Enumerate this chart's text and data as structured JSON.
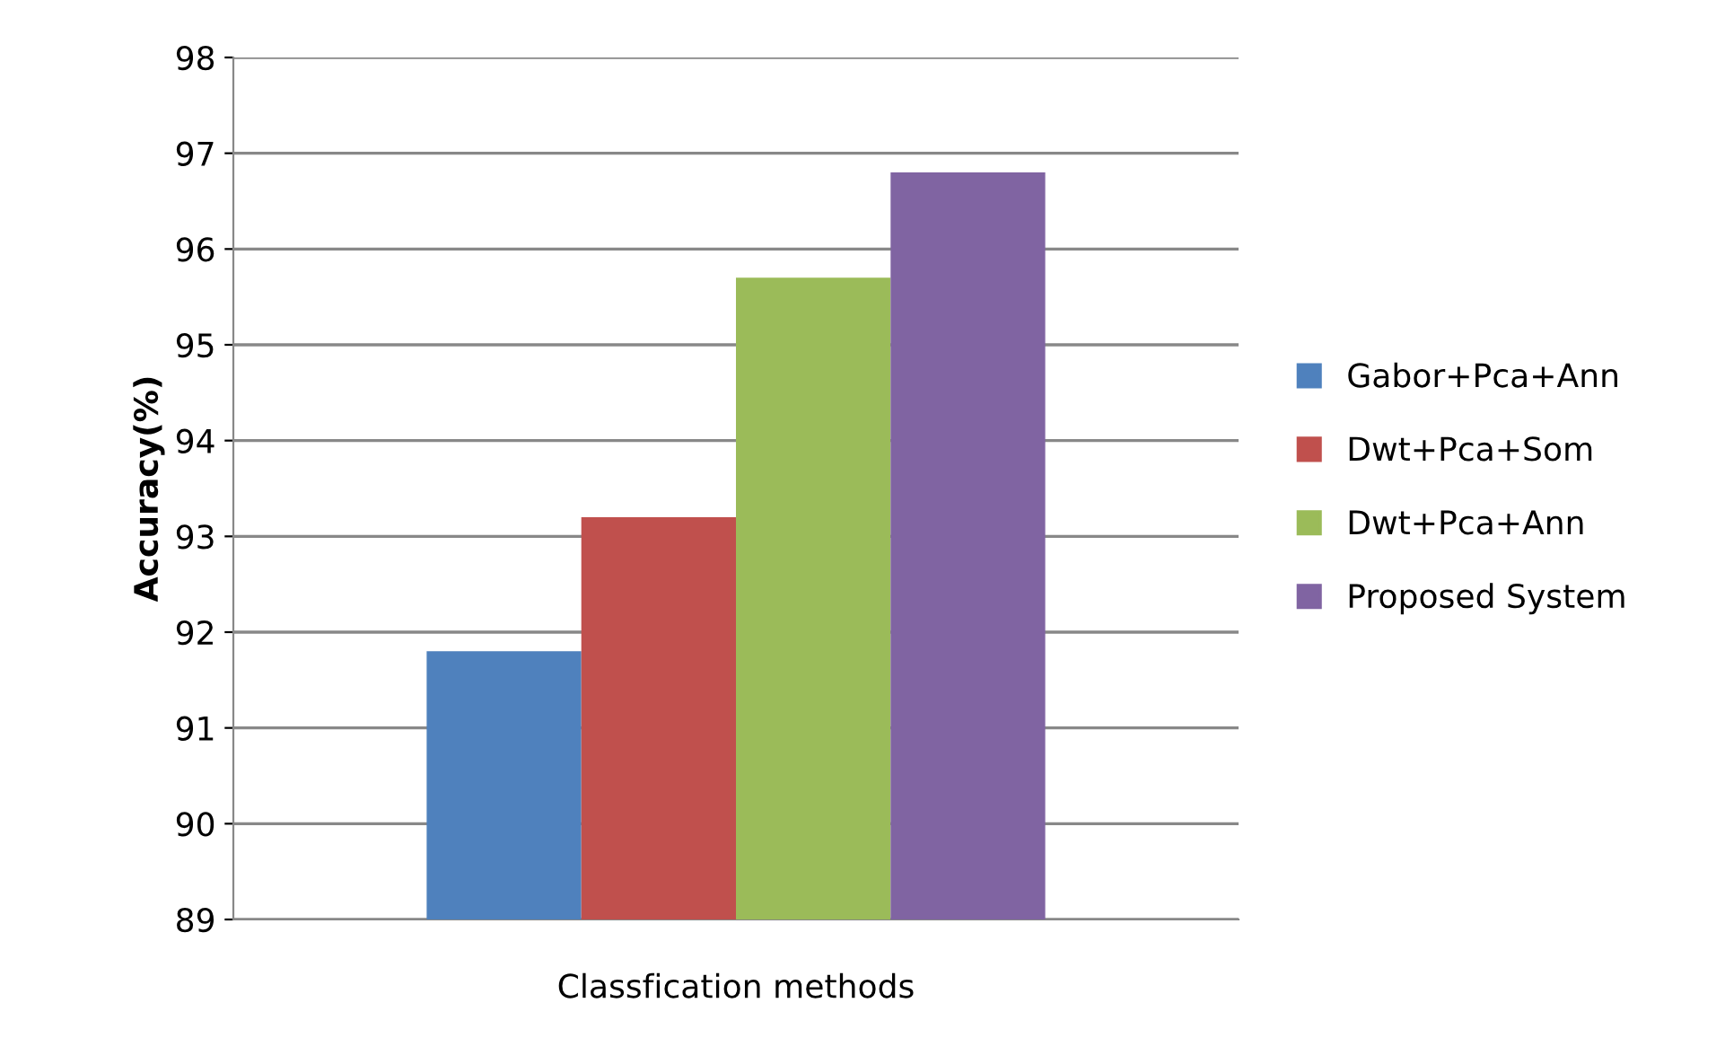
{
  "chart_data": {
    "type": "bar",
    "xlabel": "Classfication methods",
    "ylabel": "Accuracy(%)",
    "categories": [
      null
    ],
    "series": [
      {
        "name": "Gabor+Pca+Ann",
        "color": "#4f81bd",
        "values": [
          91.8
        ]
      },
      {
        "name": "Dwt+Pca+Som",
        "color": "#c0504d",
        "values": [
          93.2
        ]
      },
      {
        "name": "Dwt+Pca+Ann",
        "color": "#9bbb59",
        "values": [
          95.7
        ]
      },
      {
        "name": "Proposed System",
        "color": "#8064a2",
        "values": [
          96.8
        ]
      }
    ],
    "ylim": [
      89,
      98
    ],
    "yticks": [
      89,
      90,
      91,
      92,
      93,
      94,
      95,
      96,
      97,
      98
    ],
    "grid": "y",
    "legend": "right"
  }
}
